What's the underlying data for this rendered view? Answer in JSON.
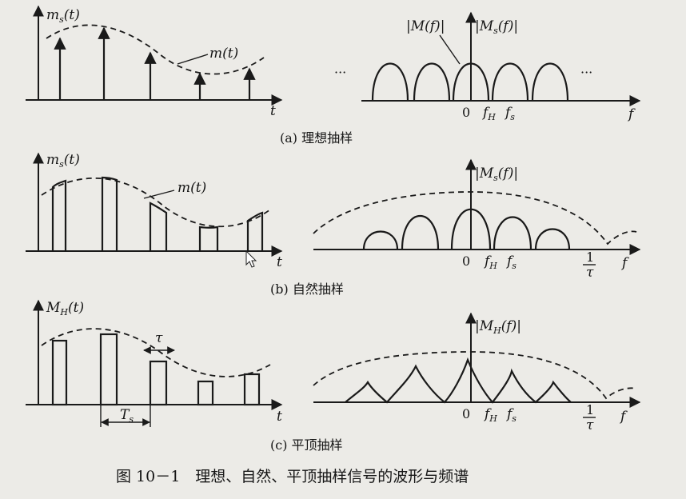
{
  "panel_a": {
    "ylabel": "m",
    "ylabel_sub": "s",
    "ylabel_arg": "(t)",
    "curve_label": "m(t)",
    "time_axis": "t",
    "spec_label_left": "|M(f)|",
    "spec_label_right": "|M",
    "spec_label_right_sub": "s",
    "spec_label_right_arg": "(f)|",
    "dots_left": "···",
    "dots_right": "···",
    "tick_zero": "0",
    "tick_fh": "f",
    "tick_fh_sub": "H",
    "tick_fs": "f",
    "tick_fs_sub": "s",
    "freq_axis": "f",
    "caption": "(a) 理想抽样"
  },
  "panel_b": {
    "ylabel": "m",
    "ylabel_sub": "s",
    "ylabel_arg": "(t)",
    "curve_label": "m(t)",
    "time_axis": "t",
    "spec_label": "|M",
    "spec_label_sub": "s",
    "spec_label_arg": "(f)|",
    "tick_zero": "0",
    "tick_fh": "f",
    "tick_fh_sub": "H",
    "tick_fs": "f",
    "tick_fs_sub": "s",
    "tick_inv_num": "1",
    "tick_inv_den": "τ",
    "freq_axis": "f",
    "caption": "(b) 自然抽样"
  },
  "panel_c": {
    "ylabel": "M",
    "ylabel_sub": "H",
    "ylabel_arg": "(t)",
    "tau_label": "τ",
    "period_label": "T",
    "period_sub": "s",
    "time_axis": "t",
    "spec_label": "|M",
    "spec_label_sub": "H",
    "spec_label_arg": "(f)|",
    "tick_zero": "0",
    "tick_fh": "f",
    "tick_fh_sub": "H",
    "tick_fs": "f",
    "tick_fs_sub": "s",
    "tick_inv_num": "1",
    "tick_inv_den": "τ",
    "freq_axis": "f",
    "caption": "(c) 平顶抽样"
  },
  "figure_caption": "图 10－1　理想、自然、平顶抽样信号的波形与频谱"
}
